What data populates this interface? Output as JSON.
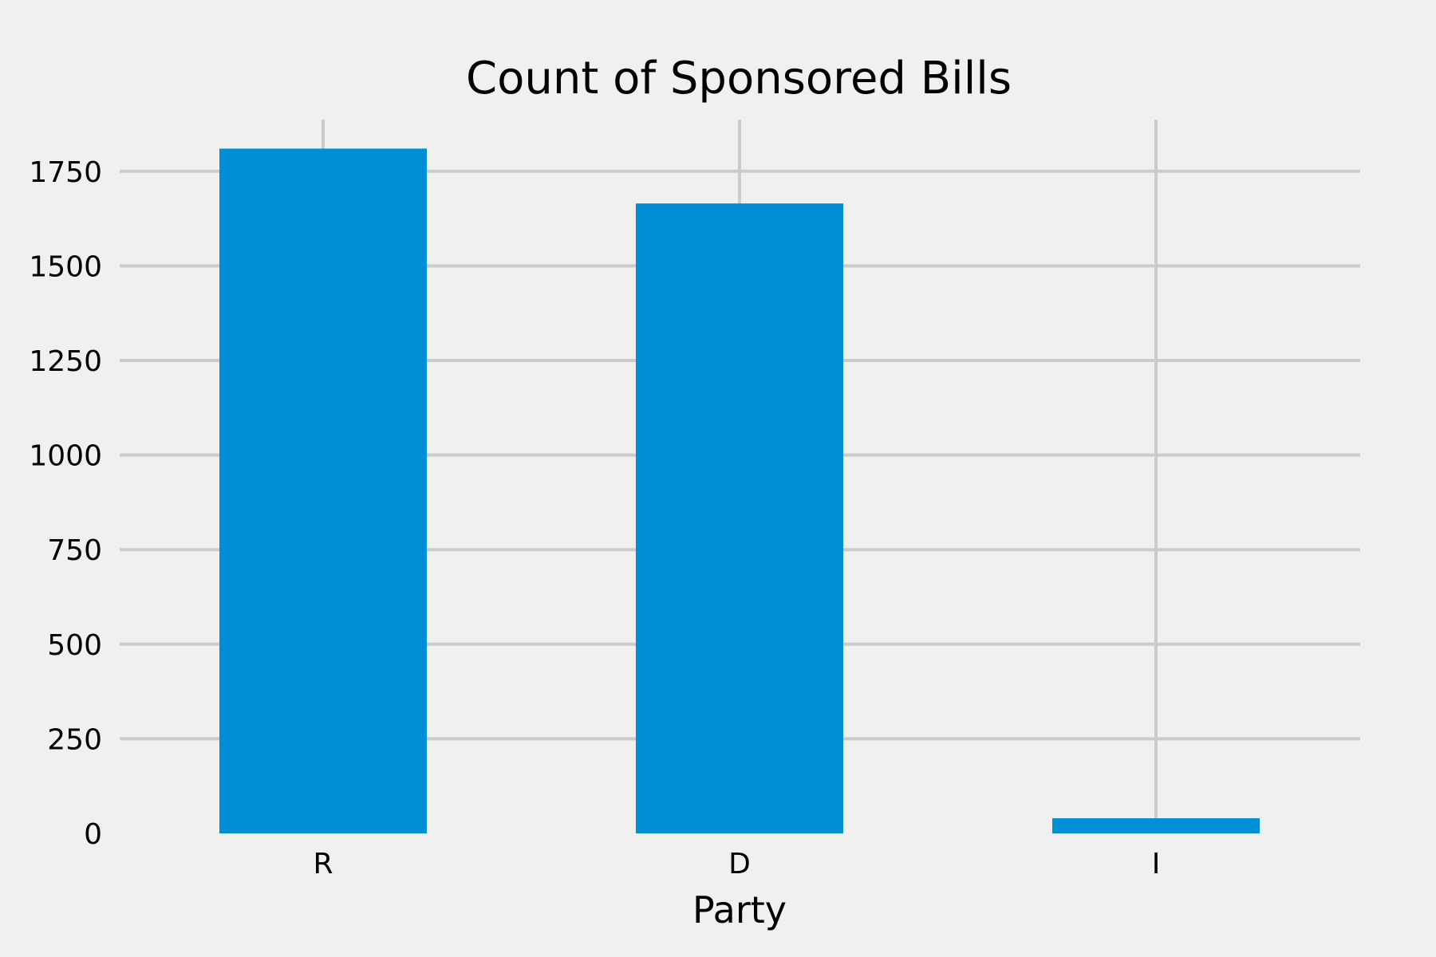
{
  "chart_data": {
    "type": "bar",
    "title": "Count of Sponsored Bills",
    "xlabel": "Party",
    "ylabel": "",
    "categories": [
      "R",
      "D",
      "I"
    ],
    "values": [
      1810,
      1665,
      40
    ],
    "ylim": [
      0,
      1880
    ],
    "yticks": [
      0,
      250,
      500,
      750,
      1000,
      1250,
      1500,
      1750
    ],
    "grid": true,
    "bar_color": "#008fd5",
    "grid_color": "#cbcbcb",
    "background_color": "#f0f0f0"
  }
}
